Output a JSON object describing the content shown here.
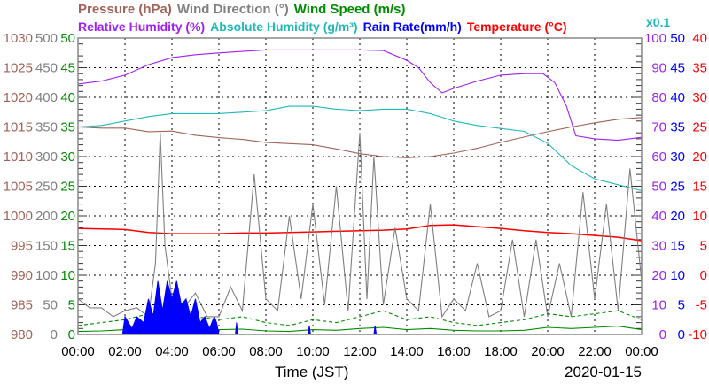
{
  "chart_data": {
    "type": "line",
    "date": "2020-01-15",
    "xlabel": "Time (JST)",
    "x_ticks": [
      "00:00",
      "02:00",
      "04:00",
      "06:00",
      "08:00",
      "10:00",
      "12:00",
      "14:00",
      "16:00",
      "18:00",
      "20:00",
      "22:00",
      "00:00"
    ],
    "legend_line1": [
      {
        "label": "Pressure (hPa)",
        "color": "#a0645a"
      },
      {
        "label": "Wind Direction (°)",
        "color": "#808080"
      },
      {
        "label": "Wind Speed (m/s)",
        "color": "#008c00"
      }
    ],
    "legend_line2": [
      {
        "label": "Relative Humidity (%)",
        "color": "#a020f0"
      },
      {
        "label": "Absolute Humidity (g/m³)",
        "color": "#20b8b8"
      },
      {
        "label": "Rain Rate(mm/h)",
        "color": "#0000ff"
      },
      {
        "label": "Temperature (°C)",
        "color": "#ff0000"
      }
    ],
    "abs_humidity_scale_note": "x0.1",
    "axes": {
      "pressure": {
        "ticks": [
          "1030",
          "1025",
          "1020",
          "1015",
          "1010",
          "1005",
          "1000",
          "995",
          "990",
          "985",
          "980"
        ],
        "range": [
          980,
          1030
        ],
        "color": "#a0645a"
      },
      "wind_direction": {
        "ticks": [
          "500",
          "450",
          "400",
          "350",
          "300",
          "250",
          "200",
          "150",
          "100",
          "50",
          "0"
        ],
        "range": [
          0,
          500
        ],
        "color": "#808080"
      },
      "wind_speed": {
        "ticks": [
          "50",
          "45",
          "40",
          "35",
          "30",
          "25",
          "20",
          "15",
          "10",
          "5",
          "0"
        ],
        "range": [
          0,
          50
        ],
        "color": "#008c00"
      },
      "humidity": {
        "ticks": [
          "100",
          "90",
          "80",
          "70",
          "60",
          "50",
          "40",
          "30",
          "20",
          "10",
          "0"
        ],
        "range": [
          0,
          100
        ],
        "color": "#a020f0"
      },
      "rain_rate": {
        "ticks": [
          "50",
          "45",
          "40",
          "35",
          "30",
          "25",
          "20",
          "15",
          "10",
          "5",
          "0"
        ],
        "range": [
          0,
          50
        ],
        "color": "#0000ff"
      },
      "temperature": {
        "ticks": [
          "40",
          "35",
          "30",
          "25",
          "20",
          "15",
          "10",
          "5",
          "0",
          "-5",
          "-10"
        ],
        "range": [
          -10,
          40
        ],
        "color": "#ff0000"
      }
    },
    "x_hours_range": [
      0,
      24
    ],
    "series": [
      {
        "name": "Pressure",
        "axis": "pressure",
        "color": "#a0645a",
        "hours": [
          0,
          1,
          2,
          3,
          4,
          5,
          6,
          7,
          8,
          9,
          10,
          11,
          12,
          13,
          14,
          15,
          16,
          17,
          18,
          19,
          20,
          21,
          22,
          23,
          24
        ],
        "values": [
          1015,
          1014.8,
          1014.8,
          1014.2,
          1014.3,
          1013.6,
          1013.2,
          1012.9,
          1012.4,
          1012.2,
          1012,
          1011.3,
          1010.5,
          1010,
          1009.8,
          1010,
          1010.6,
          1011.4,
          1012.4,
          1013.3,
          1014.2,
          1015,
          1015.7,
          1016.3,
          1016.6
        ]
      },
      {
        "name": "Relative Humidity",
        "axis": "humidity",
        "color": "#a020f0",
        "hours": [
          0,
          1,
          2,
          3,
          4,
          5,
          6,
          7,
          8,
          9,
          10,
          11,
          12,
          13,
          14,
          14.5,
          15,
          15.5,
          16,
          17,
          18,
          19,
          19.8,
          20.3,
          20.8,
          21.2,
          22,
          23,
          24
        ],
        "values": [
          84.5,
          85.5,
          87.5,
          91,
          93.4,
          94.4,
          95,
          95.5,
          96,
          96,
          96,
          96,
          96,
          95.8,
          92.5,
          90,
          85,
          81.5,
          83,
          85.5,
          87.5,
          88,
          88,
          85,
          77,
          67,
          66,
          65.5,
          66.5
        ]
      },
      {
        "name": "Absolute Humidity",
        "axis": "humidity",
        "scale": 10,
        "color": "#20b8b8",
        "hours": [
          0,
          1,
          2,
          3,
          4,
          5,
          6,
          7,
          8,
          9,
          10,
          11,
          12,
          13,
          14,
          15,
          16,
          17,
          18,
          19,
          20,
          21,
          22,
          23,
          24
        ],
        "values": [
          7.0,
          7.05,
          7.2,
          7.35,
          7.45,
          7.45,
          7.45,
          7.5,
          7.55,
          7.7,
          7.7,
          7.6,
          7.55,
          7.6,
          7.6,
          7.45,
          7.2,
          7.05,
          6.95,
          6.85,
          6.45,
          5.7,
          5.25,
          5.05,
          4.85
        ]
      },
      {
        "name": "Temperature",
        "axis": "temperature",
        "color": "#ff0000",
        "hours": [
          0,
          1,
          2,
          3,
          4,
          5,
          6,
          7,
          8,
          9,
          10,
          11,
          12,
          13,
          14,
          15,
          16,
          17,
          18,
          19,
          20,
          21,
          22,
          23,
          24
        ],
        "values": [
          7.9,
          7.8,
          7.7,
          7.2,
          7.0,
          7.0,
          7.0,
          7.1,
          7.1,
          7.2,
          7.3,
          7.4,
          7.5,
          7.6,
          7.8,
          8.4,
          8.5,
          8.2,
          7.9,
          7.5,
          7.2,
          7.0,
          6.7,
          6.4,
          5.8
        ]
      },
      {
        "name": "Wind Direction",
        "axis": "wind_direction",
        "color": "#808080",
        "hours": [
          0,
          0.5,
          1,
          1.5,
          2,
          2.5,
          3,
          3.3,
          3.5,
          3.7,
          4,
          4.5,
          5,
          5.5,
          6,
          6.5,
          7,
          7.5,
          8,
          8.5,
          9,
          9.5,
          10,
          10.5,
          11,
          11.5,
          12,
          12.3,
          12.6,
          13,
          13.5,
          14,
          14.5,
          15,
          15.5,
          16,
          16.5,
          17,
          17.5,
          18,
          18.5,
          19,
          19.5,
          20,
          20.5,
          21,
          21.5,
          22,
          22.5,
          23,
          23.5,
          24
        ],
        "values": [
          60,
          45,
          45,
          30,
          40,
          45,
          30,
          120,
          340,
          150,
          60,
          45,
          70,
          30,
          30,
          80,
          40,
          270,
          60,
          40,
          200,
          60,
          220,
          50,
          250,
          40,
          340,
          60,
          300,
          50,
          180,
          60,
          40,
          220,
          30,
          60,
          40,
          120,
          30,
          40,
          160,
          30,
          160,
          30,
          120,
          30,
          240,
          60,
          220,
          40,
          280,
          90
        ]
      },
      {
        "name": "Wind Speed (avg)",
        "axis": "wind_speed",
        "color": "#008c00",
        "dash": false,
        "hours": [
          0,
          1,
          2,
          3,
          4,
          5,
          6,
          7,
          8,
          9,
          10,
          11,
          12,
          13,
          14,
          15,
          16,
          17,
          18,
          19,
          20,
          21,
          22,
          23,
          24
        ],
        "values": [
          0.5,
          0.6,
          0.8,
          1.0,
          1.3,
          1.0,
          0.8,
          0.9,
          0.6,
          0.5,
          0.8,
          0.7,
          1.0,
          1.2,
          0.8,
          1.0,
          0.7,
          0.6,
          0.6,
          0.7,
          1.2,
          1.0,
          1.2,
          1.4,
          0.8
        ]
      },
      {
        "name": "Wind Speed (gust)",
        "axis": "wind_speed",
        "color": "#008c00",
        "dash": true,
        "hours": [
          0,
          1,
          2,
          3,
          4,
          5,
          6,
          7,
          8,
          9,
          10,
          11,
          12,
          13,
          14,
          15,
          16,
          17,
          18,
          19,
          20,
          21,
          22,
          23,
          24
        ],
        "values": [
          1.5,
          2.0,
          2.5,
          3.5,
          3.5,
          3.0,
          2.5,
          3.0,
          2.0,
          1.5,
          2.5,
          2.0,
          3.0,
          4.0,
          2.5,
          3.0,
          2.0,
          1.5,
          2.0,
          2.5,
          3.5,
          3.0,
          3.5,
          4.0,
          2.5
        ]
      },
      {
        "name": "Rain Rate",
        "axis": "rain_rate",
        "color": "#0000ff",
        "fill": true,
        "hours": [
          0,
          1.9,
          2.0,
          2.3,
          2.5,
          2.8,
          3.0,
          3.2,
          3.4,
          3.6,
          3.8,
          4.0,
          4.2,
          4.4,
          4.6,
          4.8,
          5.0,
          5.2,
          5.4,
          5.6,
          5.8,
          5.9,
          6.0,
          6.7,
          6.75,
          6.8,
          9.8,
          9.85,
          9.9,
          12.6,
          12.65,
          12.7,
          24
        ],
        "values": [
          0,
          0,
          3,
          1,
          3,
          2,
          6,
          3,
          9,
          4,
          9,
          6,
          9,
          5,
          6,
          3,
          6,
          2,
          3,
          1,
          3,
          2,
          0,
          0,
          2,
          0,
          0,
          1.5,
          0,
          0,
          1.5,
          0,
          0
        ]
      }
    ]
  }
}
